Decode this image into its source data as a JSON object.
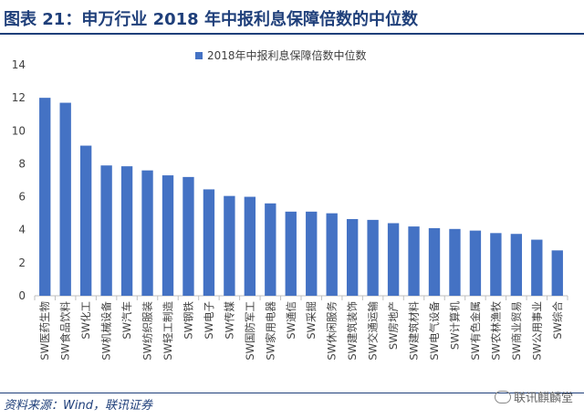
{
  "header": {
    "title": "图表 21：申万行业 2018 年中报利息保障倍数的中位数"
  },
  "footer": {
    "source": "资料来源：Wind，联讯证券",
    "watermark": "联讯麒麟堂"
  },
  "colors": {
    "bar": "#4472C4",
    "accent": "#1f3f7a"
  },
  "chart_data": {
    "type": "bar",
    "title": "",
    "xlabel": "",
    "ylabel": "",
    "ylim": [
      0,
      14
    ],
    "yticks": [
      0,
      2,
      4,
      6,
      8,
      10,
      12,
      14
    ],
    "grid": false,
    "legend_position": "top-center",
    "categories": [
      "SW医药生物",
      "SW食品饮料",
      "SW化工",
      "SW机械设备",
      "SW汽车",
      "SW纺织服装",
      "SW轻工制造",
      "SW钢铁",
      "SW电子",
      "SW传媒",
      "SW国防军工",
      "SW家用电器",
      "SW通信",
      "SW采掘",
      "SW休闲服务",
      "SW建筑装饰",
      "SW交通运输",
      "SW房地产",
      "SW建筑材料",
      "SW电气设备",
      "SW计算机",
      "SW有色金属",
      "SW农林渔牧",
      "SW商业贸易",
      "SW公用事业",
      "SW综合"
    ],
    "series": [
      {
        "name": "2018年中报利息保障倍数中位数",
        "values": [
          12.0,
          11.7,
          9.1,
          7.9,
          7.85,
          7.6,
          7.3,
          7.2,
          6.45,
          6.05,
          6.0,
          5.6,
          5.1,
          5.1,
          5.0,
          4.65,
          4.6,
          4.4,
          4.2,
          4.1,
          4.05,
          3.95,
          3.8,
          3.75,
          3.4,
          2.75
        ]
      }
    ]
  }
}
